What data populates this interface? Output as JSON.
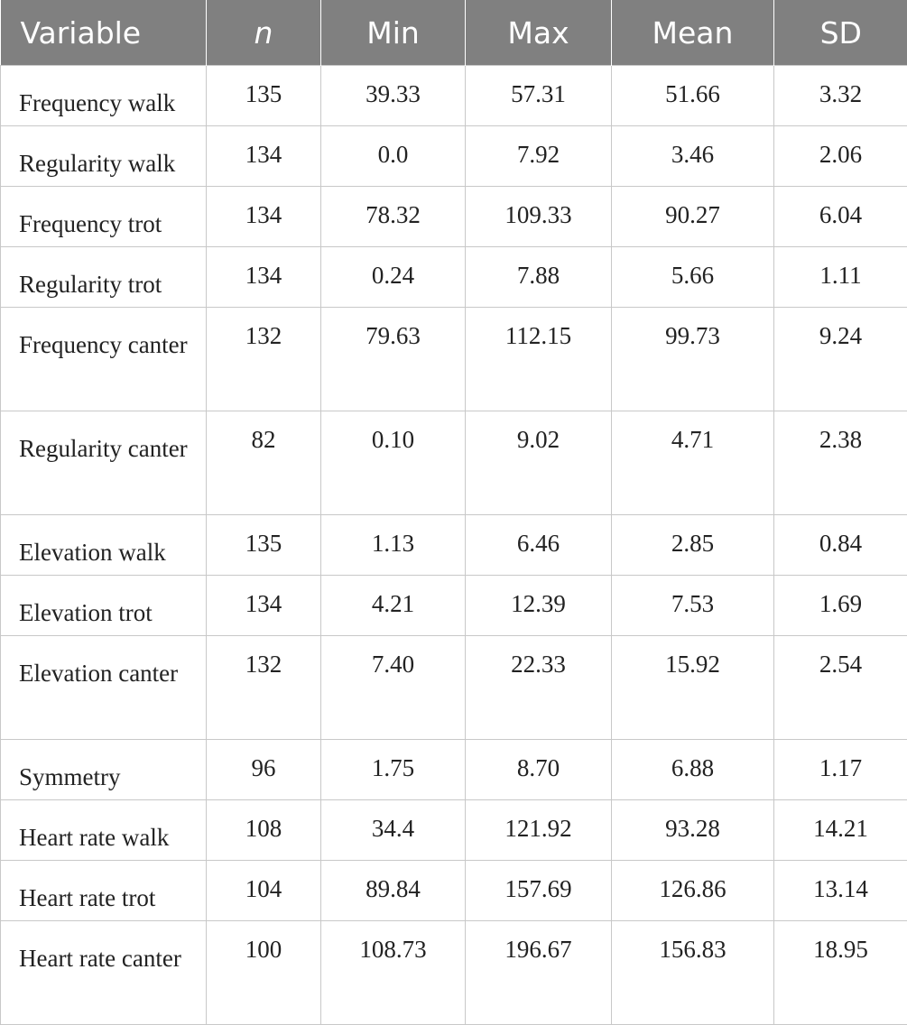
{
  "table": {
    "headers": [
      "Variable",
      "n",
      "Min",
      "Max",
      "Mean",
      "SD"
    ],
    "rows": [
      [
        "Frequency walk",
        "135",
        "39.33",
        "57.31",
        "51.66",
        "3.32"
      ],
      [
        "Regularity walk",
        "134",
        "0.0",
        "7.92",
        "3.46",
        "2.06"
      ],
      [
        "Frequency trot",
        "134",
        "78.32",
        "109.33",
        "90.27",
        "6.04"
      ],
      [
        "Regularity trot",
        "134",
        "0.24",
        "7.88",
        "5.66",
        "1.11"
      ],
      [
        "Frequency canter",
        "132",
        "79.63",
        "112.15",
        "99.73",
        "9.24"
      ],
      [
        "Regularity canter",
        "82",
        "0.10",
        "9.02",
        "4.71",
        "2.38"
      ],
      [
        "Elevation walk",
        "135",
        "1.13",
        "6.46",
        "2.85",
        "0.84"
      ],
      [
        "Elevation trot",
        "134",
        "4.21",
        "12.39",
        "7.53",
        "1.69"
      ],
      [
        "Elevation canter",
        "132",
        "7.40",
        "22.33",
        "15.92",
        "2.54"
      ],
      [
        "Symmetry",
        "96",
        "1.75",
        "8.70",
        "6.88",
        "1.17"
      ],
      [
        "Heart rate walk",
        "108",
        "34.4",
        "121.92",
        "93.28",
        "14.21"
      ],
      [
        "Heart rate trot",
        "104",
        "89.84",
        "157.69",
        "126.86",
        "13.14"
      ],
      [
        "Heart rate canter",
        "100",
        "108.73",
        "196.67",
        "156.83",
        "18.95"
      ]
    ]
  }
}
